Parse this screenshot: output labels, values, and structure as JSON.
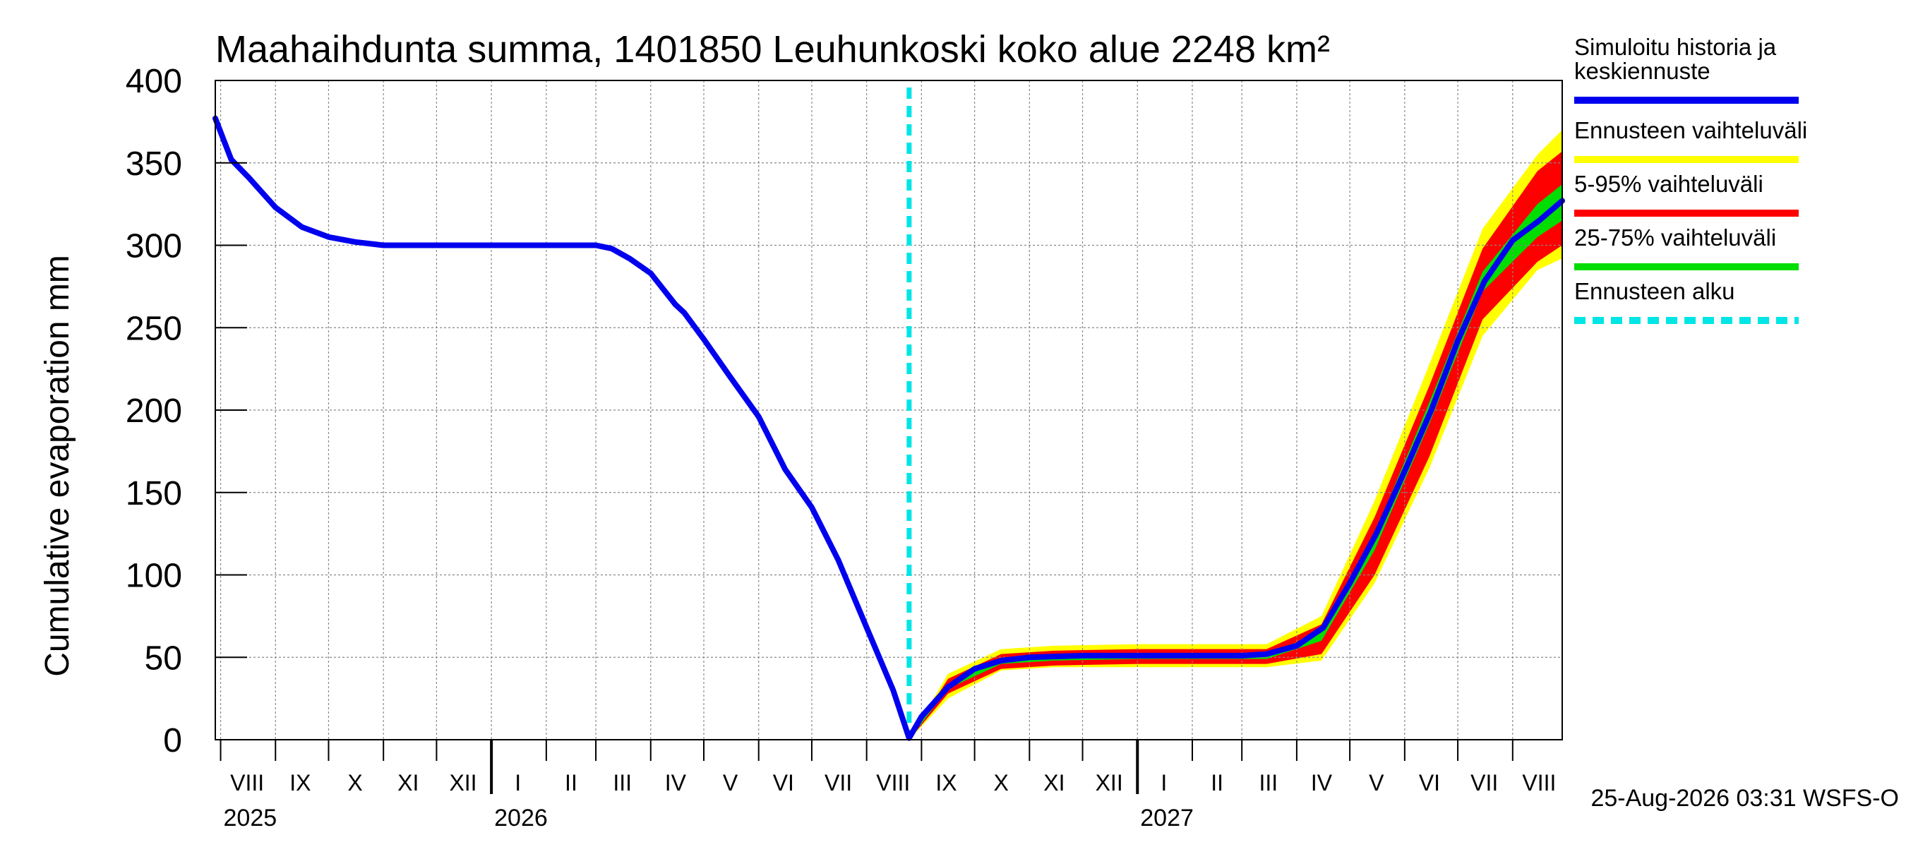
{
  "chart_data": {
    "type": "line",
    "title": "Maahaihdunta summa, 1401850 Leuhunkoski koko alue 2248 km²",
    "ylabel": "Cumulative evaporation   mm",
    "ylim": [
      0,
      400
    ],
    "yticks": [
      0,
      50,
      100,
      150,
      200,
      250,
      300,
      350,
      400
    ],
    "grid": true,
    "x_range": [
      "2025-07-29",
      "2027-08-29"
    ],
    "month_labels": [
      {
        "label": "VIII",
        "date": "2025-08-16"
      },
      {
        "label": "IX",
        "date": "2025-09-15"
      },
      {
        "label": "X",
        "date": "2025-10-16"
      },
      {
        "label": "XI",
        "date": "2025-11-15"
      },
      {
        "label": "XII",
        "date": "2025-12-16"
      },
      {
        "label": "I",
        "date": "2026-01-16"
      },
      {
        "label": "II",
        "date": "2026-02-15"
      },
      {
        "label": "III",
        "date": "2026-03-16"
      },
      {
        "label": "IV",
        "date": "2026-04-15"
      },
      {
        "label": "V",
        "date": "2026-05-16"
      },
      {
        "label": "VI",
        "date": "2026-06-15"
      },
      {
        "label": "VII",
        "date": "2026-07-16"
      },
      {
        "label": "VIII",
        "date": "2026-08-16"
      },
      {
        "label": "IX",
        "date": "2026-09-15"
      },
      {
        "label": "X",
        "date": "2026-10-16"
      },
      {
        "label": "XI",
        "date": "2026-11-15"
      },
      {
        "label": "XII",
        "date": "2026-12-16"
      },
      {
        "label": "I",
        "date": "2027-01-16"
      },
      {
        "label": "II",
        "date": "2027-02-15"
      },
      {
        "label": "III",
        "date": "2027-03-16"
      },
      {
        "label": "IV",
        "date": "2027-04-15"
      },
      {
        "label": "V",
        "date": "2027-05-16"
      },
      {
        "label": "VI",
        "date": "2027-06-15"
      },
      {
        "label": "VII",
        "date": "2027-07-16"
      },
      {
        "label": "VIII",
        "date": "2027-08-16"
      }
    ],
    "year_labels": [
      {
        "label": "2025",
        "date": "2025-08-01"
      },
      {
        "label": "2026",
        "date": "2026-01-01"
      },
      {
        "label": "2027",
        "date": "2027-01-01"
      }
    ],
    "forecast_start": "2026-08-25",
    "series": [
      {
        "name": "Simuloitu historia ja keskiennuste",
        "color": "#0000ee",
        "points": [
          [
            "2025-07-29",
            377
          ],
          [
            "2025-08-07",
            352
          ],
          [
            "2025-08-17",
            341
          ],
          [
            "2025-09-01",
            323
          ],
          [
            "2025-09-16",
            311
          ],
          [
            "2025-10-01",
            305
          ],
          [
            "2025-10-16",
            302
          ],
          [
            "2025-11-01",
            300
          ],
          [
            "2025-12-01",
            300
          ],
          [
            "2026-01-01",
            300
          ],
          [
            "2026-02-01",
            300
          ],
          [
            "2026-03-01",
            300
          ],
          [
            "2026-03-10",
            298
          ],
          [
            "2026-03-20",
            292
          ],
          [
            "2026-04-01",
            283
          ],
          [
            "2026-04-15",
            264
          ],
          [
            "2026-04-20",
            259
          ],
          [
            "2026-05-01",
            243
          ],
          [
            "2026-05-16",
            220
          ],
          [
            "2026-06-01",
            196
          ],
          [
            "2026-06-16",
            164
          ],
          [
            "2026-07-01",
            141
          ],
          [
            "2026-07-16",
            109
          ],
          [
            "2026-08-01",
            68
          ],
          [
            "2026-08-16",
            30
          ],
          [
            "2026-08-25",
            1
          ],
          [
            "2026-09-01",
            14
          ],
          [
            "2026-09-16",
            32
          ],
          [
            "2026-10-01",
            43
          ],
          [
            "2026-10-16",
            48
          ],
          [
            "2026-11-01",
            50
          ],
          [
            "2026-12-01",
            51
          ],
          [
            "2027-01-01",
            51
          ],
          [
            "2027-02-01",
            51
          ],
          [
            "2027-03-01",
            51
          ],
          [
            "2027-03-15",
            52
          ],
          [
            "2027-04-01",
            57
          ],
          [
            "2027-04-16",
            68
          ],
          [
            "2027-05-01",
            95
          ],
          [
            "2027-05-16",
            125
          ],
          [
            "2027-06-01",
            163
          ],
          [
            "2027-06-16",
            200
          ],
          [
            "2027-07-01",
            242
          ],
          [
            "2027-07-16",
            278
          ],
          [
            "2027-08-01",
            303
          ],
          [
            "2027-08-16",
            315
          ],
          [
            "2027-08-29",
            327
          ]
        ]
      },
      {
        "name": "Ennusteen vaihteluväli",
        "color": "#ffff00",
        "dates": [
          "2026-08-25",
          "2026-09-16",
          "2026-10-16",
          "2026-11-15",
          "2027-01-01",
          "2027-03-15",
          "2027-04-15",
          "2027-05-15",
          "2027-06-15",
          "2027-07-15",
          "2027-08-15",
          "2027-08-29"
        ],
        "low": [
          0,
          25,
          42,
          44,
          44,
          44,
          48,
          95,
          165,
          245,
          285,
          292
        ],
        "high": [
          0,
          40,
          55,
          57,
          58,
          58,
          75,
          145,
          228,
          310,
          355,
          370
        ]
      },
      {
        "name": "5-95% vaihteluväli",
        "color": "#ff0000",
        "dates": [
          "2026-08-25",
          "2026-09-16",
          "2026-10-16",
          "2026-11-15",
          "2027-01-01",
          "2027-03-15",
          "2027-04-15",
          "2027-05-15",
          "2027-06-15",
          "2027-07-15",
          "2027-08-15",
          "2027-08-29"
        ],
        "low": [
          0,
          28,
          43,
          45,
          46,
          46,
          52,
          100,
          172,
          255,
          290,
          300
        ],
        "high": [
          0,
          37,
          52,
          54,
          55,
          55,
          70,
          135,
          215,
          298,
          345,
          357
        ]
      },
      {
        "name": "25-75% vaihteluväli",
        "color": "#00dd00",
        "dates": [
          "2026-08-25",
          "2026-09-16",
          "2026-10-16",
          "2026-11-15",
          "2027-01-01",
          "2027-03-15",
          "2027-04-15",
          "2027-05-15",
          "2027-06-15",
          "2027-07-15",
          "2027-08-15",
          "2027-08-29"
        ],
        "low": [
          0,
          31,
          46,
          48,
          49,
          49,
          60,
          115,
          192,
          272,
          305,
          315
        ],
        "high": [
          0,
          34,
          49,
          51,
          52,
          52,
          65,
          125,
          205,
          284,
          325,
          337
        ]
      }
    ],
    "legend": {
      "position": "right",
      "items": [
        {
          "label": "Simuloitu historia ja\nkeskiennuste",
          "color": "#0000ee",
          "style": "solid"
        },
        {
          "label": "Ennusteen vaihteluväli",
          "color": "#ffff00",
          "style": "solid"
        },
        {
          "label": "5-95% vaihteluväli",
          "color": "#ff0000",
          "style": "solid"
        },
        {
          "label": "25-75% vaihteluväli",
          "color": "#00dd00",
          "style": "solid"
        },
        {
          "label": "Ennusteen alku",
          "color": "#00e5e5",
          "style": "dashed"
        }
      ]
    },
    "footer": "25-Aug-2026 03:31 WSFS-O"
  }
}
